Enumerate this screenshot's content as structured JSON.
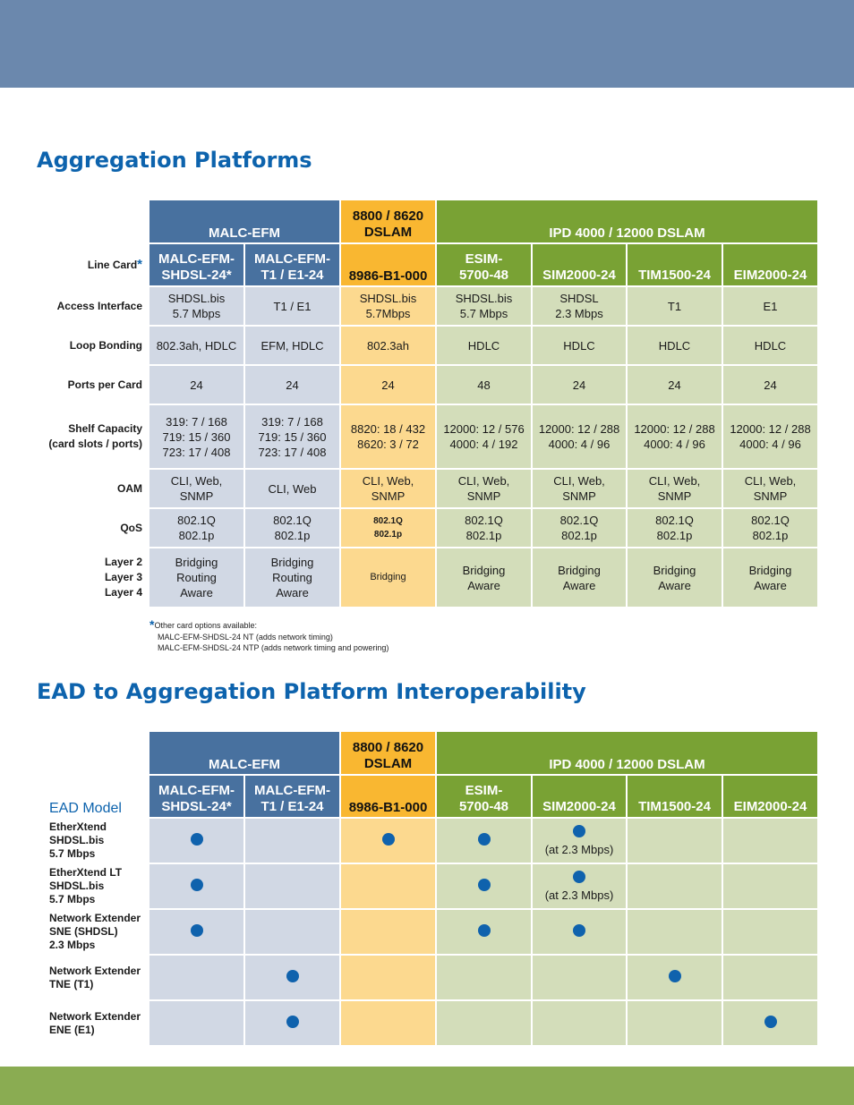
{
  "section1": {
    "title": "Aggregation Platforms"
  },
  "section2": {
    "title": "EAD to Aggregation Platform Interoperability"
  },
  "groups": {
    "malc": "MALC-EFM",
    "dslam8800": [
      "8800 / 8620",
      "DSLAM"
    ],
    "ipd": "IPD 4000 / 12000 DSLAM"
  },
  "cards": [
    [
      "MALC-EFM-",
      "SHDSL-24*"
    ],
    [
      "MALC-EFM-",
      "T1 / E1-24"
    ],
    [
      "8986-B1-000"
    ],
    [
      "ESIM-",
      "5700-48"
    ],
    [
      "SIM2000-24"
    ],
    [
      "TIM1500-24"
    ],
    [
      "EIM2000-24"
    ]
  ],
  "spec": {
    "line_card_label": "Line Card",
    "line_card_star": "*",
    "rows": [
      {
        "label": [
          "Access Interface"
        ],
        "values": [
          [
            "SHDSL.bis",
            "5.7 Mbps"
          ],
          [
            "T1 / E1"
          ],
          [
            "SHDSL.bis",
            "5.7Mbps"
          ],
          [
            "SHDSL.bis",
            "5.7 Mbps"
          ],
          [
            "SHDSL",
            "2.3 Mbps"
          ],
          [
            "T1"
          ],
          [
            "E1"
          ]
        ]
      },
      {
        "label": [
          "Loop Bonding"
        ],
        "values": [
          [
            "802.3ah, HDLC"
          ],
          [
            "EFM, HDLC"
          ],
          [
            "802.3ah"
          ],
          [
            "HDLC"
          ],
          [
            "HDLC"
          ],
          [
            "HDLC"
          ],
          [
            "HDLC"
          ]
        ]
      },
      {
        "label": [
          "Ports per Card"
        ],
        "values": [
          [
            "24"
          ],
          [
            "24"
          ],
          [
            "24"
          ],
          [
            "48"
          ],
          [
            "24"
          ],
          [
            "24"
          ],
          [
            "24"
          ]
        ]
      },
      {
        "label": [
          "Shelf Capacity",
          "(card slots / ports)"
        ],
        "values": [
          [
            "319: 7 / 168",
            "719: 15 / 360",
            "723: 17 / 408"
          ],
          [
            "319: 7 / 168",
            "719: 15 / 360",
            "723: 17 / 408"
          ],
          [
            "8820: 18 / 432",
            "8620: 3 / 72"
          ],
          [
            "12000: 12 / 576",
            "4000: 4 / 192"
          ],
          [
            "12000: 12 / 288",
            "4000: 4 / 96"
          ],
          [
            "12000: 12 / 288",
            "4000: 4 / 96"
          ],
          [
            "12000: 12 / 288",
            "4000: 4 / 96"
          ]
        ]
      },
      {
        "label": [
          "OAM"
        ],
        "values": [
          [
            "CLI, Web,",
            "SNMP"
          ],
          [
            "CLI, Web"
          ],
          [
            "CLI, Web,",
            "SNMP"
          ],
          [
            "CLI, Web,",
            "SNMP"
          ],
          [
            "CLI, Web,",
            "SNMP"
          ],
          [
            "CLI, Web,",
            "SNMP"
          ],
          [
            "CLI, Web,",
            "SNMP"
          ]
        ]
      },
      {
        "label": [
          "QoS"
        ],
        "values": [
          [
            "802.1Q",
            "802.1p"
          ],
          [
            "802.1Q",
            "802.1p"
          ],
          [
            "802.1Q",
            "802.1p"
          ],
          [
            "802.1Q",
            "802.1p"
          ],
          [
            "802.1Q",
            "802.1p"
          ],
          [
            "802.1Q",
            "802.1p"
          ],
          [
            "802.1Q",
            "802.1p"
          ]
        ]
      },
      {
        "label": [
          "Layer 2",
          "Layer 3",
          "Layer 4"
        ],
        "values": [
          [
            "Bridging",
            "Routing",
            "Aware"
          ],
          [
            "Bridging",
            "Routing",
            "Aware"
          ],
          [
            "Bridging"
          ],
          [
            "Bridging",
            "Aware"
          ],
          [
            "Bridging",
            "Aware"
          ],
          [
            "Bridging",
            "Aware"
          ],
          [
            "Bridging",
            "Aware"
          ]
        ]
      }
    ]
  },
  "footnote": {
    "star": "*",
    "lines": [
      "Other card options available:",
      "MALC-EFM-SHDSL-24 NT (adds network timing)",
      "MALC-EFM-SHDSL-24 NTP (adds network timing and powering)"
    ]
  },
  "interop": {
    "ead_model_label": "EAD Model",
    "rows": [
      {
        "model": [
          "EtherXtend",
          "SHDSL.bis",
          "5.7 Mbps"
        ],
        "support": [
          true,
          false,
          true,
          true,
          true,
          false,
          false
        ],
        "notes": [
          "",
          "",
          "",
          "",
          "(at 2.3 Mbps)",
          "",
          ""
        ]
      },
      {
        "model": [
          "EtherXtend LT",
          "SHDSL.bis",
          "5.7 Mbps"
        ],
        "support": [
          true,
          false,
          false,
          true,
          true,
          false,
          false
        ],
        "notes": [
          "",
          "",
          "",
          "",
          "(at 2.3 Mbps)",
          "",
          ""
        ]
      },
      {
        "model": [
          "Network Extender",
          "SNE (SHDSL)",
          "2.3 Mbps"
        ],
        "support": [
          true,
          false,
          false,
          true,
          true,
          false,
          false
        ],
        "notes": [
          "",
          "",
          "",
          "",
          "",
          "",
          ""
        ]
      },
      {
        "model": [
          "Network Extender",
          "TNE (T1)"
        ],
        "support": [
          false,
          true,
          false,
          false,
          false,
          true,
          false
        ],
        "notes": [
          "",
          "",
          "",
          "",
          "",
          "",
          ""
        ]
      },
      {
        "model": [
          "Network Extender",
          "ENE (E1)"
        ],
        "support": [
          false,
          true,
          false,
          false,
          false,
          false,
          true
        ],
        "notes": [
          "",
          "",
          "",
          "",
          "",
          "",
          ""
        ]
      }
    ]
  },
  "colors": {
    "header_band": "#6b88ad",
    "footer_band": "#8aac52",
    "title_blue": "#0d63ad",
    "malc_header": "#48719f",
    "dslam8800_header": "#f9b731",
    "ipd_header": "#79a234",
    "malc_cell": "#d1d8e4",
    "dslam8800_cell": "#fcd98f",
    "ipd_cell": "#d3ddba",
    "dot": "#0f62ad"
  }
}
